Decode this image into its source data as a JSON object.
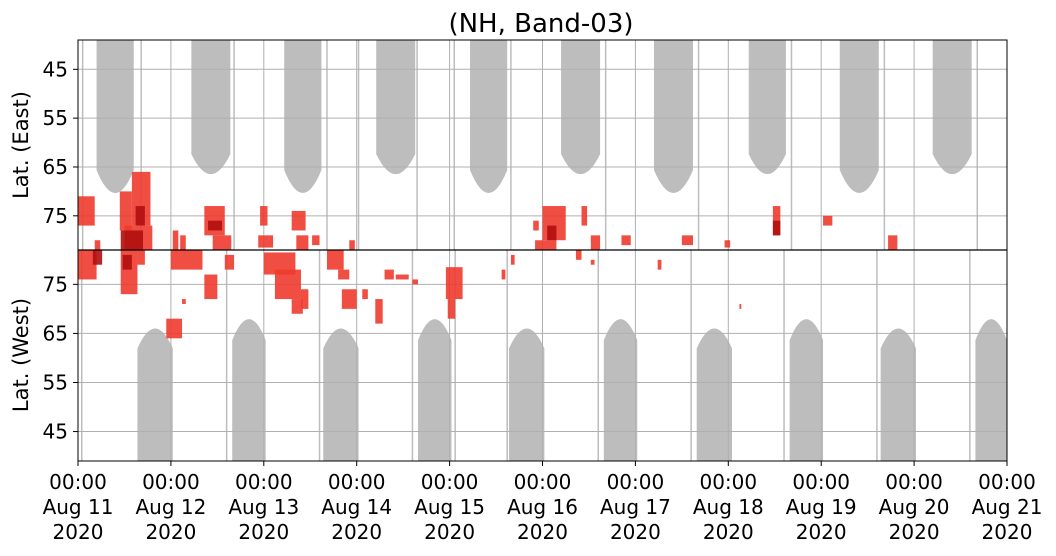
{
  "chart_data": {
    "type": "heatmap",
    "title": "(NH, Band-03)",
    "panels": [
      {
        "name": "east",
        "ylabel": "Lat. (East)",
        "ylim": [
          39,
          82
        ],
        "y_ticks": [
          45,
          55,
          65,
          75
        ],
        "y_direction": "increasing-downward"
      },
      {
        "name": "west",
        "ylabel": "Lat. (West)",
        "ylim": [
          39,
          82
        ],
        "y_ticks": [
          75,
          65,
          55,
          45
        ],
        "y_direction": "increasing-upward"
      }
    ],
    "x_range_days": [
      0,
      10
    ],
    "x_ticks": [
      {
        "day": 0,
        "time": "00:00",
        "date": "Aug 11",
        "year": "2020"
      },
      {
        "day": 1,
        "time": "00:00",
        "date": "Aug 12",
        "year": "2020"
      },
      {
        "day": 2,
        "time": "00:00",
        "date": "Aug 13",
        "year": "2020"
      },
      {
        "day": 3,
        "time": "00:00",
        "date": "Aug 14",
        "year": "2020"
      },
      {
        "day": 4,
        "time": "00:00",
        "date": "Aug 15",
        "year": "2020"
      },
      {
        "day": 5,
        "time": "00:00",
        "date": "Aug 16",
        "year": "2020"
      },
      {
        "day": 6,
        "time": "00:00",
        "date": "Aug 17",
        "year": "2020"
      },
      {
        "day": 7,
        "time": "00:00",
        "date": "Aug 18",
        "year": "2020"
      },
      {
        "day": 8,
        "time": "00:00",
        "date": "Aug 19",
        "year": "2020"
      },
      {
        "day": 9,
        "time": "00:00",
        "date": "Aug 20",
        "year": "2020"
      },
      {
        "day": 10,
        "time": "00:00",
        "date": "Aug 21",
        "year": "2020"
      }
    ],
    "grid": true,
    "no_data_color": "#bdbdbd",
    "echo_colors": [
      "#f4a09a",
      "#ee3b2e",
      "#b0100f"
    ],
    "no_data_regions": [
      {
        "panel": "east",
        "day_start": 0.2,
        "day_end": 0.6,
        "lat_top": 39,
        "lat_bottom": 71.5
      },
      {
        "panel": "east",
        "day_start": 1.22,
        "day_end": 1.64,
        "lat_top": 39,
        "lat_bottom": 67.5
      },
      {
        "panel": "east",
        "day_start": 2.22,
        "day_end": 2.62,
        "lat_top": 39,
        "lat_bottom": 71.5
      },
      {
        "panel": "east",
        "day_start": 3.21,
        "day_end": 3.63,
        "lat_top": 39,
        "lat_bottom": 67.5
      },
      {
        "panel": "east",
        "day_start": 4.22,
        "day_end": 4.62,
        "lat_top": 39,
        "lat_bottom": 71.5
      },
      {
        "panel": "east",
        "day_start": 5.2,
        "day_end": 5.62,
        "lat_top": 39,
        "lat_bottom": 67.5
      },
      {
        "panel": "east",
        "day_start": 6.2,
        "day_end": 6.62,
        "lat_top": 39,
        "lat_bottom": 71.5
      },
      {
        "panel": "east",
        "day_start": 7.22,
        "day_end": 7.62,
        "lat_top": 39,
        "lat_bottom": 67.5
      },
      {
        "panel": "east",
        "day_start": 8.2,
        "day_end": 8.62,
        "lat_top": 39,
        "lat_bottom": 71.5
      },
      {
        "panel": "east",
        "day_start": 9.2,
        "day_end": 9.62,
        "lat_top": 39,
        "lat_bottom": 67.5
      },
      {
        "panel": "west",
        "day_start": 0.64,
        "day_end": 1.02,
        "lat_top": 39,
        "lat_bottom": 67
      },
      {
        "panel": "west",
        "day_start": 1.66,
        "day_end": 2.02,
        "lat_top": 39,
        "lat_bottom": 69
      },
      {
        "panel": "west",
        "day_start": 2.64,
        "day_end": 3.02,
        "lat_top": 39,
        "lat_bottom": 67
      },
      {
        "panel": "west",
        "day_start": 3.66,
        "day_end": 4.02,
        "lat_top": 39,
        "lat_bottom": 69
      },
      {
        "panel": "west",
        "day_start": 4.64,
        "day_end": 5.02,
        "lat_top": 39,
        "lat_bottom": 67
      },
      {
        "panel": "west",
        "day_start": 5.66,
        "day_end": 6.02,
        "lat_top": 39,
        "lat_bottom": 69
      },
      {
        "panel": "west",
        "day_start": 6.66,
        "day_end": 7.04,
        "lat_top": 39,
        "lat_bottom": 67
      },
      {
        "panel": "west",
        "day_start": 7.66,
        "day_end": 8.02,
        "lat_top": 39,
        "lat_bottom": 69
      },
      {
        "panel": "west",
        "day_start": 8.64,
        "day_end": 9.02,
        "lat_top": 39,
        "lat_bottom": 67
      },
      {
        "panel": "west",
        "day_start": 9.66,
        "day_end": 10.0,
        "lat_top": 39,
        "lat_bottom": 69
      }
    ],
    "no_data_lines": [
      {
        "panel": "east",
        "day": 0.05
      },
      {
        "panel": "east",
        "day": 0.68
      },
      {
        "panel": "east",
        "day": 1.68
      },
      {
        "panel": "east",
        "day": 2.68
      },
      {
        "panel": "east",
        "day": 3.02
      },
      {
        "panel": "east",
        "day": 3.65
      },
      {
        "panel": "east",
        "day": 4.05
      },
      {
        "panel": "east",
        "day": 4.66
      },
      {
        "panel": "east",
        "day": 5.68
      },
      {
        "panel": "east",
        "day": 6.68
      },
      {
        "panel": "east",
        "day": 7.68
      },
      {
        "panel": "east",
        "day": 8.68
      },
      {
        "panel": "east",
        "day": 9.68
      },
      {
        "panel": "west",
        "day": 0.04
      },
      {
        "panel": "west",
        "day": 1.6
      },
      {
        "panel": "west",
        "day": 2.6
      },
      {
        "panel": "west",
        "day": 3.6
      },
      {
        "panel": "west",
        "day": 4.06
      },
      {
        "panel": "west",
        "day": 4.62
      },
      {
        "panel": "west",
        "day": 5.6
      },
      {
        "panel": "west",
        "day": 6.6
      },
      {
        "panel": "west",
        "day": 7.6
      },
      {
        "panel": "west",
        "day": 8.6
      },
      {
        "panel": "west",
        "day": 9.6
      }
    ],
    "echo_cells": [
      {
        "panel": "east",
        "day_start": 0.0,
        "day_end": 0.18,
        "lat_start": 71,
        "lat_end": 77,
        "level": 1
      },
      {
        "panel": "east",
        "day_start": 0.18,
        "day_end": 0.24,
        "lat_start": 80,
        "lat_end": 82,
        "level": 1
      },
      {
        "panel": "east",
        "day_start": 0.45,
        "day_end": 0.58,
        "lat_start": 70,
        "lat_end": 78,
        "level": 1
      },
      {
        "panel": "east",
        "day_start": 0.5,
        "day_end": 0.8,
        "lat_start": 77,
        "lat_end": 82,
        "level": 1
      },
      {
        "panel": "east",
        "day_start": 0.58,
        "day_end": 0.78,
        "lat_start": 66,
        "lat_end": 77,
        "level": 1
      },
      {
        "panel": "east",
        "day_start": 0.46,
        "day_end": 0.7,
        "lat_start": 78,
        "lat_end": 82,
        "level": 2
      },
      {
        "panel": "east",
        "day_start": 0.62,
        "day_end": 0.72,
        "lat_start": 73,
        "lat_end": 77,
        "level": 2
      },
      {
        "panel": "east",
        "day_start": 1.02,
        "day_end": 1.08,
        "lat_start": 78,
        "lat_end": 82,
        "level": 1
      },
      {
        "panel": "east",
        "day_start": 1.1,
        "day_end": 1.16,
        "lat_start": 79,
        "lat_end": 82,
        "level": 1
      },
      {
        "panel": "east",
        "day_start": 1.36,
        "day_end": 1.58,
        "lat_start": 73,
        "lat_end": 79,
        "level": 1
      },
      {
        "panel": "east",
        "day_start": 1.4,
        "day_end": 1.55,
        "lat_start": 76,
        "lat_end": 78,
        "level": 2
      },
      {
        "panel": "east",
        "day_start": 1.45,
        "day_end": 1.65,
        "lat_start": 79,
        "lat_end": 82,
        "level": 1
      },
      {
        "panel": "east",
        "day_start": 1.96,
        "day_end": 2.04,
        "lat_start": 73,
        "lat_end": 77,
        "level": 1
      },
      {
        "panel": "east",
        "day_start": 1.94,
        "day_end": 2.1,
        "lat_start": 79,
        "lat_end": 81.5,
        "level": 1
      },
      {
        "panel": "east",
        "day_start": 2.3,
        "day_end": 2.45,
        "lat_start": 74,
        "lat_end": 78,
        "level": 1
      },
      {
        "panel": "east",
        "day_start": 2.35,
        "day_end": 2.48,
        "lat_start": 79,
        "lat_end": 82,
        "level": 1
      },
      {
        "panel": "east",
        "day_start": 2.52,
        "day_end": 2.6,
        "lat_start": 79,
        "lat_end": 81,
        "level": 1
      },
      {
        "panel": "east",
        "day_start": 2.92,
        "day_end": 2.98,
        "lat_start": 80,
        "lat_end": 82,
        "level": 1
      },
      {
        "panel": "east",
        "day_start": 4.9,
        "day_end": 4.96,
        "lat_start": 76,
        "lat_end": 78,
        "level": 1
      },
      {
        "panel": "east",
        "day_start": 5.0,
        "day_end": 5.25,
        "lat_start": 73,
        "lat_end": 80,
        "level": 1
      },
      {
        "panel": "east",
        "day_start": 4.92,
        "day_end": 5.15,
        "lat_start": 80,
        "lat_end": 82,
        "level": 1
      },
      {
        "panel": "east",
        "day_start": 5.05,
        "day_end": 5.15,
        "lat_start": 77,
        "lat_end": 80,
        "level": 2
      },
      {
        "panel": "east",
        "day_start": 5.42,
        "day_end": 5.48,
        "lat_start": 73,
        "lat_end": 77,
        "level": 1
      },
      {
        "panel": "east",
        "day_start": 5.52,
        "day_end": 5.62,
        "lat_start": 79,
        "lat_end": 82,
        "level": 1
      },
      {
        "panel": "east",
        "day_start": 5.85,
        "day_end": 5.95,
        "lat_start": 79,
        "lat_end": 81,
        "level": 1
      },
      {
        "panel": "east",
        "day_start": 6.5,
        "day_end": 6.62,
        "lat_start": 79,
        "lat_end": 81,
        "level": 1
      },
      {
        "panel": "east",
        "day_start": 6.96,
        "day_end": 7.02,
        "lat_start": 80,
        "lat_end": 81.5,
        "level": 1
      },
      {
        "panel": "east",
        "day_start": 7.48,
        "day_end": 7.56,
        "lat_start": 73,
        "lat_end": 79,
        "level": 1
      },
      {
        "panel": "east",
        "day_start": 7.48,
        "day_end": 7.56,
        "lat_start": 76,
        "lat_end": 79,
        "level": 2
      },
      {
        "panel": "east",
        "day_start": 8.02,
        "day_end": 8.12,
        "lat_start": 75,
        "lat_end": 77,
        "level": 1
      },
      {
        "panel": "east",
        "day_start": 8.72,
        "day_end": 8.82,
        "lat_start": 79,
        "lat_end": 82,
        "level": 1
      },
      {
        "panel": "west",
        "day_start": 0.0,
        "day_end": 0.2,
        "lat_start": 76,
        "lat_end": 82,
        "level": 1
      },
      {
        "panel": "west",
        "day_start": 0.16,
        "day_end": 0.26,
        "lat_start": 79,
        "lat_end": 82,
        "level": 2
      },
      {
        "panel": "west",
        "day_start": 0.46,
        "day_end": 0.64,
        "lat_start": 73,
        "lat_end": 82,
        "level": 1
      },
      {
        "panel": "west",
        "day_start": 0.48,
        "day_end": 0.58,
        "lat_start": 78,
        "lat_end": 81,
        "level": 2
      },
      {
        "panel": "west",
        "day_start": 0.64,
        "day_end": 0.72,
        "lat_start": 79,
        "lat_end": 82,
        "level": 1
      },
      {
        "panel": "west",
        "day_start": 0.95,
        "day_end": 1.12,
        "lat_start": 64,
        "lat_end": 68,
        "level": 1
      },
      {
        "panel": "west",
        "day_start": 1.0,
        "day_end": 1.34,
        "lat_start": 78,
        "lat_end": 82,
        "level": 1
      },
      {
        "panel": "west",
        "day_start": 1.12,
        "day_end": 1.16,
        "lat_start": 71,
        "lat_end": 72,
        "level": 1
      },
      {
        "panel": "west",
        "day_start": 1.36,
        "day_end": 1.5,
        "lat_start": 72,
        "lat_end": 77,
        "level": 1
      },
      {
        "panel": "west",
        "day_start": 1.58,
        "day_end": 1.68,
        "lat_start": 78,
        "lat_end": 81,
        "level": 1
      },
      {
        "panel": "west",
        "day_start": 2.0,
        "day_end": 2.34,
        "lat_start": 77,
        "lat_end": 81.5,
        "level": 1
      },
      {
        "panel": "west",
        "day_start": 2.12,
        "day_end": 2.4,
        "lat_start": 72,
        "lat_end": 78,
        "level": 1
      },
      {
        "panel": "west",
        "day_start": 2.3,
        "day_end": 2.42,
        "lat_start": 69,
        "lat_end": 72,
        "level": 1
      },
      {
        "panel": "west",
        "day_start": 2.4,
        "day_end": 2.48,
        "lat_start": 70,
        "lat_end": 74,
        "level": 1
      },
      {
        "panel": "west",
        "day_start": 2.68,
        "day_end": 2.86,
        "lat_start": 78,
        "lat_end": 82,
        "level": 1
      },
      {
        "panel": "west",
        "day_start": 2.8,
        "day_end": 2.92,
        "lat_start": 76,
        "lat_end": 78,
        "level": 1
      },
      {
        "panel": "west",
        "day_start": 2.84,
        "day_end": 3.0,
        "lat_start": 70,
        "lat_end": 74,
        "level": 1
      },
      {
        "panel": "west",
        "day_start": 3.06,
        "day_end": 3.12,
        "lat_start": 72,
        "lat_end": 74,
        "level": 1
      },
      {
        "panel": "west",
        "day_start": 3.2,
        "day_end": 3.28,
        "lat_start": 67,
        "lat_end": 72,
        "level": 1
      },
      {
        "panel": "west",
        "day_start": 3.3,
        "day_end": 3.4,
        "lat_start": 76,
        "lat_end": 78,
        "level": 1
      },
      {
        "panel": "west",
        "day_start": 3.42,
        "day_end": 3.56,
        "lat_start": 76,
        "lat_end": 77,
        "level": 1
      },
      {
        "panel": "west",
        "day_start": 3.6,
        "day_end": 3.66,
        "lat_start": 75,
        "lat_end": 76,
        "level": 1
      },
      {
        "panel": "west",
        "day_start": 3.96,
        "day_end": 4.14,
        "lat_start": 72,
        "lat_end": 78.5,
        "level": 1
      },
      {
        "panel": "west",
        "day_start": 3.98,
        "day_end": 4.06,
        "lat_start": 68,
        "lat_end": 72,
        "level": 1
      },
      {
        "panel": "west",
        "day_start": 4.56,
        "day_end": 4.6,
        "lat_start": 76,
        "lat_end": 78,
        "level": 1
      },
      {
        "panel": "west",
        "day_start": 4.66,
        "day_end": 4.7,
        "lat_start": 79,
        "lat_end": 81,
        "level": 1
      },
      {
        "panel": "west",
        "day_start": 5.36,
        "day_end": 5.42,
        "lat_start": 80,
        "lat_end": 82,
        "level": 1
      },
      {
        "panel": "west",
        "day_start": 5.52,
        "day_end": 5.56,
        "lat_start": 79,
        "lat_end": 80,
        "level": 1
      },
      {
        "panel": "west",
        "day_start": 6.24,
        "day_end": 6.28,
        "lat_start": 78,
        "lat_end": 80,
        "level": 1
      },
      {
        "panel": "west",
        "day_start": 7.12,
        "day_end": 7.14,
        "lat_start": 70,
        "lat_end": 71,
        "level": 1
      }
    ]
  }
}
